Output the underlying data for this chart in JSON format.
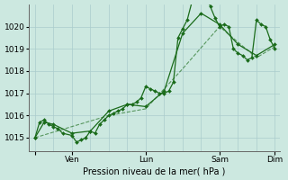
{
  "bg_color": "#cce8e0",
  "grid_color_major": "#aacccc",
  "grid_color_minor": "#bbdddd",
  "line_color": "#1a6b1a",
  "xlabel": "Pression niveau de la mer( hPa )",
  "ylim": [
    1014.4,
    1021.0
  ],
  "yticks": [
    1015,
    1016,
    1017,
    1018,
    1019,
    1020
  ],
  "day_positions": [
    0,
    48,
    144,
    240,
    312
  ],
  "day_labels": [
    "",
    "Ven",
    "Lun",
    "Sam",
    "Dim"
  ],
  "series1_x": [
    0,
    6,
    12,
    18,
    24,
    30,
    36,
    48,
    54,
    60,
    66,
    72,
    78,
    84,
    90,
    96,
    102,
    108,
    114,
    120,
    126,
    132,
    138,
    144,
    150,
    156,
    162,
    168,
    174,
    180,
    186,
    192,
    198,
    204,
    210,
    216,
    222,
    228,
    234,
    240,
    246,
    252,
    258,
    264,
    270,
    276,
    282,
    288,
    294,
    300,
    306,
    312
  ],
  "series1_y": [
    1015.0,
    1015.7,
    1015.8,
    1015.6,
    1015.5,
    1015.4,
    1015.2,
    1015.1,
    1014.8,
    1014.9,
    1015.0,
    1015.3,
    1015.2,
    1015.6,
    1015.8,
    1016.0,
    1016.1,
    1016.2,
    1016.3,
    1016.5,
    1016.5,
    1016.6,
    1016.8,
    1017.3,
    1017.2,
    1017.1,
    1017.0,
    1017.0,
    1017.1,
    1017.5,
    1019.5,
    1019.9,
    1020.3,
    1021.1,
    1021.4,
    1021.2,
    1021.5,
    1020.9,
    1020.4,
    1020.0,
    1020.1,
    1020.0,
    1019.0,
    1018.8,
    1018.7,
    1018.5,
    1018.6,
    1020.3,
    1020.1,
    1020.0,
    1019.4,
    1019.0
  ],
  "series2_x": [
    0,
    12,
    24,
    48,
    72,
    96,
    120,
    144,
    168,
    192,
    216,
    240,
    264,
    288,
    312
  ],
  "series2_y": [
    1015.0,
    1015.7,
    1015.6,
    1015.2,
    1015.3,
    1016.2,
    1016.5,
    1016.4,
    1017.1,
    1019.7,
    1020.6,
    1020.1,
    1019.2,
    1018.7,
    1019.2
  ],
  "series3_x": [
    0,
    48,
    96,
    144,
    192,
    240,
    288,
    312
  ],
  "series3_y": [
    1015.0,
    1015.5,
    1016.0,
    1016.3,
    1018.1,
    1020.0,
    1018.6,
    1019.1
  ]
}
